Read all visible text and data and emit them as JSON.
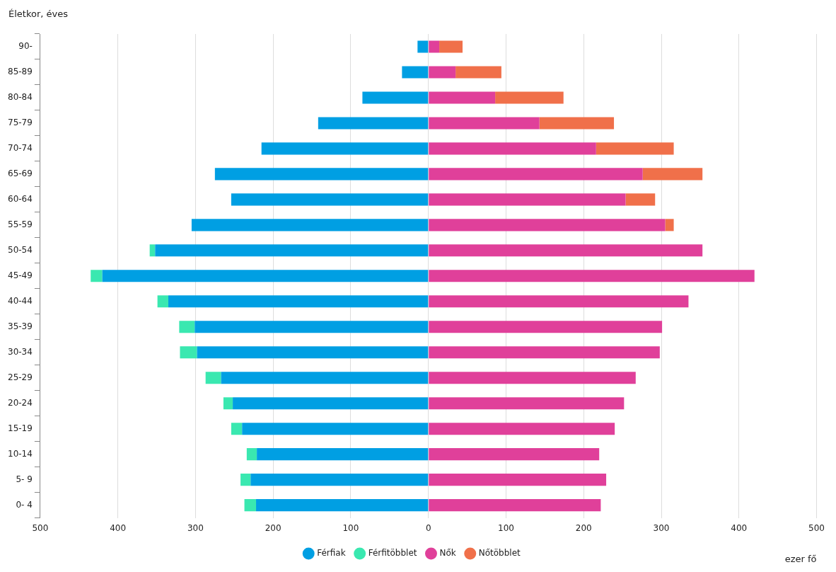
{
  "chart_data": {
    "type": "bar",
    "orientation": "horizontal",
    "stacked": true,
    "ylabel": "Életkor, éves",
    "xlabel": "ezer fő",
    "categories": [
      "90-",
      "85-89",
      "80-84",
      "75-79",
      "70-74",
      "65-69",
      "60-64",
      "55-59",
      "50-54",
      "45-49",
      "40-44",
      "35-39",
      "30-34",
      "25-29",
      "20-24",
      "15-19",
      "10-14",
      "5- 9",
      "0- 4"
    ],
    "series": [
      {
        "name": "Férfiak",
        "color": "#009fe3",
        "values": [
          -14,
          -34,
          -85,
          -142,
          -215,
          -275,
          -254,
          -305,
          -352,
          -420,
          -335,
          -301,
          -298,
          -267,
          -252,
          -240,
          -221,
          -229,
          -222
        ]
      },
      {
        "name": "Férfitöbblet",
        "color": "#3ae8b0",
        "values": [
          null,
          null,
          null,
          null,
          null,
          null,
          null,
          null,
          -7,
          -15,
          -14,
          -20,
          -22,
          -20,
          -12,
          -14,
          -13,
          -13,
          -15
        ]
      },
      {
        "name": "Nők",
        "color": "#e0409a",
        "values": [
          14,
          35,
          86,
          143,
          216,
          276,
          254,
          305,
          353,
          420,
          335,
          301,
          298,
          267,
          252,
          240,
          220,
          229,
          222
        ]
      },
      {
        "name": "Nőtöbblet",
        "color": "#f0704a",
        "values": [
          30,
          59,
          88,
          96,
          100,
          77,
          38,
          11,
          null,
          null,
          null,
          null,
          null,
          null,
          null,
          null,
          null,
          null,
          null
        ]
      }
    ],
    "xlim": [
      -500,
      500
    ],
    "xticks": [
      {
        "value": -500,
        "label": "500"
      },
      {
        "value": -400,
        "label": "400"
      },
      {
        "value": -300,
        "label": "300"
      },
      {
        "value": -200,
        "label": "200"
      },
      {
        "value": -100,
        "label": "100"
      },
      0,
      100,
      200,
      300,
      400,
      500
    ],
    "grid": "x",
    "legend": "bottom"
  }
}
